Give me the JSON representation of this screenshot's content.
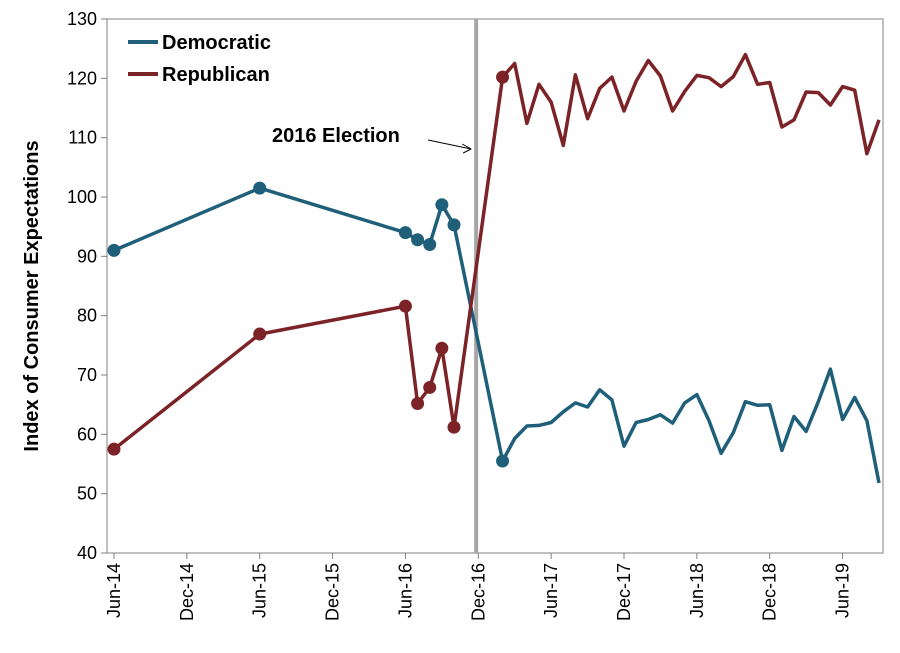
{
  "chart_data": {
    "type": "line",
    "ylabel": "Index of Consumer Expectations",
    "xlabel": "",
    "ylim": [
      40,
      130
    ],
    "yticks": [
      40,
      50,
      60,
      70,
      80,
      90,
      100,
      110,
      120,
      130
    ],
    "xticks": [
      "Jun-14",
      "Dec-14",
      "Jun-15",
      "Dec-15",
      "Jun-16",
      "Dec-16",
      "Jun-17",
      "Dec-17",
      "Jun-18",
      "Dec-18",
      "Jun-19"
    ],
    "grid": false,
    "legend": "top-left",
    "annotation": {
      "text": "2016 Election",
      "x": "2016-11"
    },
    "series": [
      {
        "name": "Democratic",
        "color": "#1f5f7a",
        "points": [
          {
            "x": "2014-06",
            "y": 91.0,
            "marker": true
          },
          {
            "x": "2015-06",
            "y": 101.5,
            "marker": true
          },
          {
            "x": "2016-06",
            "y": 94.0,
            "marker": true
          },
          {
            "x": "2016-07",
            "y": 92.8,
            "marker": true
          },
          {
            "x": "2016-08",
            "y": 92.0,
            "marker": true
          },
          {
            "x": "2016-09",
            "y": 98.7,
            "marker": true
          },
          {
            "x": "2016-10",
            "y": 95.3,
            "marker": true
          },
          {
            "x": "2017-02",
            "y": 55.5,
            "marker": true
          },
          {
            "x": "2017-03",
            "y": 59.3
          },
          {
            "x": "2017-04",
            "y": 61.4
          },
          {
            "x": "2017-05",
            "y": 61.5
          },
          {
            "x": "2017-06",
            "y": 62.0
          },
          {
            "x": "2017-07",
            "y": 63.8
          },
          {
            "x": "2017-08",
            "y": 65.3
          },
          {
            "x": "2017-09",
            "y": 64.6
          },
          {
            "x": "2017-10",
            "y": 67.5
          },
          {
            "x": "2017-11",
            "y": 65.8
          },
          {
            "x": "2017-12",
            "y": 58.0
          },
          {
            "x": "2018-01",
            "y": 62.0
          },
          {
            "x": "2018-02",
            "y": 62.5
          },
          {
            "x": "2018-03",
            "y": 63.3
          },
          {
            "x": "2018-04",
            "y": 61.9
          },
          {
            "x": "2018-05",
            "y": 65.3
          },
          {
            "x": "2018-06",
            "y": 66.7
          },
          {
            "x": "2018-07",
            "y": 62.3
          },
          {
            "x": "2018-08",
            "y": 56.8
          },
          {
            "x": "2018-09",
            "y": 60.3
          },
          {
            "x": "2018-10",
            "y": 65.5
          },
          {
            "x": "2018-11",
            "y": 64.9
          },
          {
            "x": "2018-12",
            "y": 65.0
          },
          {
            "x": "2019-01",
            "y": 57.3
          },
          {
            "x": "2019-02",
            "y": 63.0
          },
          {
            "x": "2019-03",
            "y": 60.5
          },
          {
            "x": "2019-04",
            "y": 65.5
          },
          {
            "x": "2019-05",
            "y": 71.0
          },
          {
            "x": "2019-06",
            "y": 62.5
          },
          {
            "x": "2019-07",
            "y": 66.2
          },
          {
            "x": "2019-08",
            "y": 62.3
          },
          {
            "x": "2019-09",
            "y": 51.8
          }
        ]
      },
      {
        "name": "Republican",
        "color": "#7b2327",
        "points": [
          {
            "x": "2014-06",
            "y": 57.5,
            "marker": true
          },
          {
            "x": "2015-06",
            "y": 76.9,
            "marker": true
          },
          {
            "x": "2016-06",
            "y": 81.6,
            "marker": true
          },
          {
            "x": "2016-07",
            "y": 65.2,
            "marker": true
          },
          {
            "x": "2016-08",
            "y": 67.9,
            "marker": true
          },
          {
            "x": "2016-09",
            "y": 74.5,
            "marker": true
          },
          {
            "x": "2016-10",
            "y": 61.2,
            "marker": true
          },
          {
            "x": "2017-02",
            "y": 120.2,
            "marker": true
          },
          {
            "x": "2017-03",
            "y": 122.5
          },
          {
            "x": "2017-04",
            "y": 112.4
          },
          {
            "x": "2017-05",
            "y": 119.0
          },
          {
            "x": "2017-06",
            "y": 116.0
          },
          {
            "x": "2017-07",
            "y": 108.7
          },
          {
            "x": "2017-08",
            "y": 120.6
          },
          {
            "x": "2017-09",
            "y": 113.2
          },
          {
            "x": "2017-10",
            "y": 118.3
          },
          {
            "x": "2017-11",
            "y": 120.2
          },
          {
            "x": "2017-12",
            "y": 114.5
          },
          {
            "x": "2018-01",
            "y": 119.5
          },
          {
            "x": "2018-02",
            "y": 123.0
          },
          {
            "x": "2018-03",
            "y": 120.4
          },
          {
            "x": "2018-04",
            "y": 114.5
          },
          {
            "x": "2018-05",
            "y": 117.8
          },
          {
            "x": "2018-06",
            "y": 120.5
          },
          {
            "x": "2018-07",
            "y": 120.1
          },
          {
            "x": "2018-08",
            "y": 118.6
          },
          {
            "x": "2018-09",
            "y": 120.3
          },
          {
            "x": "2018-10",
            "y": 124.0
          },
          {
            "x": "2018-11",
            "y": 119.0
          },
          {
            "x": "2018-12",
            "y": 119.3
          },
          {
            "x": "2019-01",
            "y": 111.8
          },
          {
            "x": "2019-02",
            "y": 113.0
          },
          {
            "x": "2019-03",
            "y": 117.7
          },
          {
            "x": "2019-04",
            "y": 117.6
          },
          {
            "x": "2019-05",
            "y": 115.5
          },
          {
            "x": "2019-06",
            "y": 118.6
          },
          {
            "x": "2019-07",
            "y": 118.0
          },
          {
            "x": "2019-08",
            "y": 107.3
          },
          {
            "x": "2019-09",
            "y": 113.0
          }
        ]
      }
    ],
    "election_line_color": "#a6a6a6"
  }
}
